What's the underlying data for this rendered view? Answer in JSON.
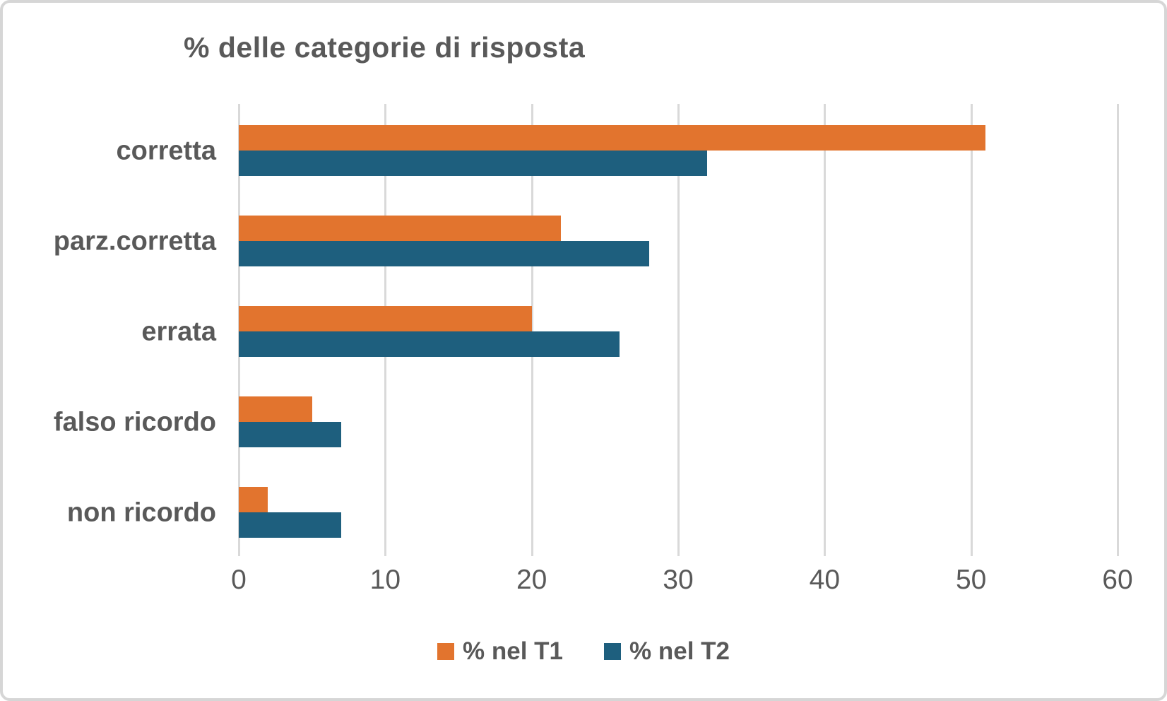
{
  "chart_data": {
    "type": "bar",
    "orientation": "horizontal",
    "title": "% delle categorie di risposta",
    "categories": [
      "corretta",
      "parz.corretta",
      "errata",
      "falso ricordo",
      "non ricordo"
    ],
    "series": [
      {
        "name": "% nel T1",
        "color": "#e2742e",
        "values": [
          51,
          22,
          20,
          5,
          2
        ]
      },
      {
        "name": "% nel T2",
        "color": "#1e5f7e",
        "values": [
          32,
          28,
          26,
          7,
          7
        ]
      }
    ],
    "xlabel": "",
    "ylabel": "",
    "xlim": [
      0,
      60
    ],
    "xticks": [
      0,
      10,
      20,
      30,
      40,
      50,
      60
    ],
    "grid": "vertical-only",
    "legend_position": "bottom-center"
  },
  "colors": {
    "text": "#595959",
    "gridline": "#d9d9d9",
    "frame_border": "#d6d6d6",
    "background": "#ffffff"
  }
}
